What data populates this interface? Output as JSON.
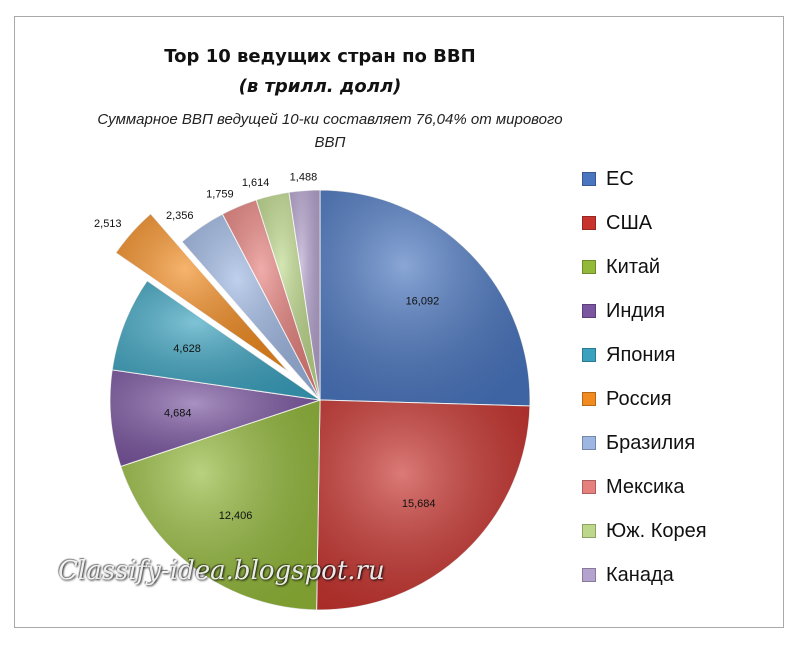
{
  "chart_data": {
    "type": "pie",
    "title": "Top 10 ведущих стран по ВВП",
    "unit_label": "(в трилл. долл)",
    "subtitle": "Суммарное ВВП ведущей 10-ки составляет 76,04% от мирового ВВП",
    "categories": [
      "ЕС",
      "США",
      "Китай",
      "Индия",
      "Япония",
      "Россия",
      "Бразилия",
      "Мексика",
      "Юж. Корея",
      "Канада"
    ],
    "values": [
      16.092,
      15.684,
      12.406,
      4.684,
      4.628,
      2.513,
      2.356,
      1.759,
      1.614,
      1.488
    ],
    "value_labels": [
      "16,092",
      "15,684",
      "12,406",
      "4,684",
      "4,628",
      "2,513",
      "2,356",
      "1,759",
      "1,614",
      "1,488"
    ],
    "colors": [
      "#4a76c0",
      "#c8332e",
      "#93b93a",
      "#7a55a0",
      "#3aa2bf",
      "#f28b1f",
      "#9db6e2",
      "#e6807c",
      "#bdd88a",
      "#b5a3cf"
    ],
    "exploded": [
      "Россия"
    ],
    "legend_position": "right"
  },
  "watermark": "Classify-idea.blogspot.ru"
}
